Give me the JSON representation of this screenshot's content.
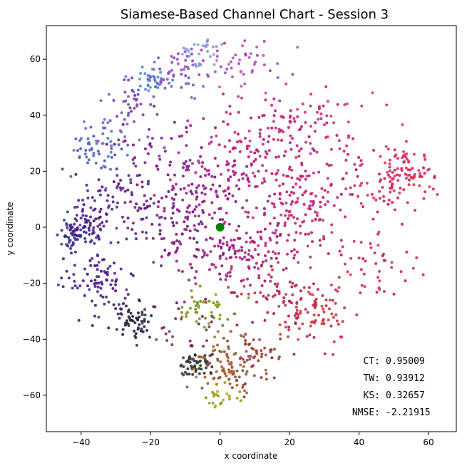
{
  "chart_data": {
    "type": "scatter",
    "title": "Siamese-Based Channel Chart - Session 3",
    "xlabel": "x coordinate",
    "ylabel": "y coordinate",
    "xlim": [
      -50,
      68
    ],
    "ylim": [
      -73,
      72
    ],
    "xticks": [
      -40,
      -20,
      0,
      20,
      40,
      60
    ],
    "yticks": [
      -60,
      -40,
      -20,
      0,
      20,
      40,
      60
    ],
    "grid": false,
    "highlight_point": {
      "x": 0,
      "y": 0,
      "color": "#008000"
    },
    "metrics": [
      {
        "label": "CT:",
        "value": "0.95009"
      },
      {
        "label": "TW:",
        "value": "0.93912"
      },
      {
        "label": "KS:",
        "value": "0.32657"
      },
      {
        "label": "NMSE:",
        "value": "-2.21915"
      }
    ],
    "clusters": [
      {
        "x": -42,
        "y": -2,
        "spread": 3.0,
        "count": 70,
        "color": "#3a2f90"
      },
      {
        "x": -38,
        "y": 3,
        "spread": 3.5,
        "count": 40,
        "color": "#4a1d8a"
      },
      {
        "x": -36,
        "y": -18,
        "spread": 4.5,
        "count": 70,
        "color": "#4f1e86"
      },
      {
        "x": -30,
        "y": 10,
        "spread": 6.0,
        "count": 60,
        "color": "#5a1f8c"
      },
      {
        "x": -35,
        "y": 27,
        "spread": 3.5,
        "count": 45,
        "color": "#4e63c2"
      },
      {
        "x": -30,
        "y": 34,
        "spread": 5.0,
        "count": 30,
        "color": "#7c5cbf"
      },
      {
        "x": -25,
        "y": 45,
        "spread": 4.0,
        "count": 30,
        "color": "#7a3fb0"
      },
      {
        "x": -20,
        "y": 53,
        "spread": 2.5,
        "count": 35,
        "color": "#5a7fd0"
      },
      {
        "x": -10,
        "y": 56,
        "spread": 5.0,
        "count": 60,
        "color": "#8c4ec0"
      },
      {
        "x": -5,
        "y": 62,
        "spread": 3.0,
        "count": 30,
        "color": "#8c9cd8"
      },
      {
        "x": 8,
        "y": 60,
        "spread": 6.0,
        "count": 40,
        "color": "#b44ab4"
      },
      {
        "x": -15,
        "y": 0,
        "spread": 9.0,
        "count": 100,
        "color": "#6e1a82"
      },
      {
        "x": -20,
        "y": 25,
        "spread": 7.0,
        "count": 45,
        "color": "#7a1c8a"
      },
      {
        "x": -5,
        "y": 12,
        "spread": 8.0,
        "count": 80,
        "color": "#931c86"
      },
      {
        "x": 5,
        "y": 22,
        "spread": 9.0,
        "count": 90,
        "color": "#b81e80"
      },
      {
        "x": 3,
        "y": -10,
        "spread": 9.0,
        "count": 110,
        "color": "#a31d7c"
      },
      {
        "x": 18,
        "y": 30,
        "spread": 9.0,
        "count": 90,
        "color": "#c21f79"
      },
      {
        "x": 25,
        "y": 10,
        "spread": 9.0,
        "count": 100,
        "color": "#c62373"
      },
      {
        "x": 15,
        "y": -5,
        "spread": 8.0,
        "count": 80,
        "color": "#b8206f"
      },
      {
        "x": 30,
        "y": 40,
        "spread": 8.0,
        "count": 50,
        "color": "#d02877"
      },
      {
        "x": 45,
        "y": 15,
        "spread": 8.0,
        "count": 70,
        "color": "#d6255f"
      },
      {
        "x": 53,
        "y": 20,
        "spread": 4.0,
        "count": 60,
        "color": "#dc2a57"
      },
      {
        "x": 45,
        "y": -15,
        "spread": 6.0,
        "count": 40,
        "color": "#d42a55"
      },
      {
        "x": 27,
        "y": -30,
        "spread": 5.0,
        "count": 80,
        "color": "#c8313f"
      },
      {
        "x": 18,
        "y": -25,
        "spread": 6.0,
        "count": 50,
        "color": "#b52a52"
      },
      {
        "x": -25,
        "y": -34,
        "spread": 3.0,
        "count": 50,
        "color": "#2a2740"
      },
      {
        "x": -30,
        "y": -28,
        "spread": 4.0,
        "count": 25,
        "color": "#3a2a60"
      },
      {
        "x": -5,
        "y": -30,
        "spread": 4.0,
        "count": 45,
        "color": "#7a9a20"
      },
      {
        "x": -7,
        "y": -49,
        "spread": 2.5,
        "count": 50,
        "color": "#2e3a2a"
      },
      {
        "x": 2,
        "y": -50,
        "spread": 5.0,
        "count": 90,
        "color": "#9a5a30"
      },
      {
        "x": 0,
        "y": -60,
        "spread": 3.0,
        "count": 25,
        "color": "#a0a020"
      },
      {
        "x": 10,
        "y": -45,
        "spread": 4.0,
        "count": 40,
        "color": "#a03a3a"
      },
      {
        "x": -10,
        "y": -38,
        "spread": 5.0,
        "count": 30,
        "color": "#7a2a60"
      }
    ]
  }
}
